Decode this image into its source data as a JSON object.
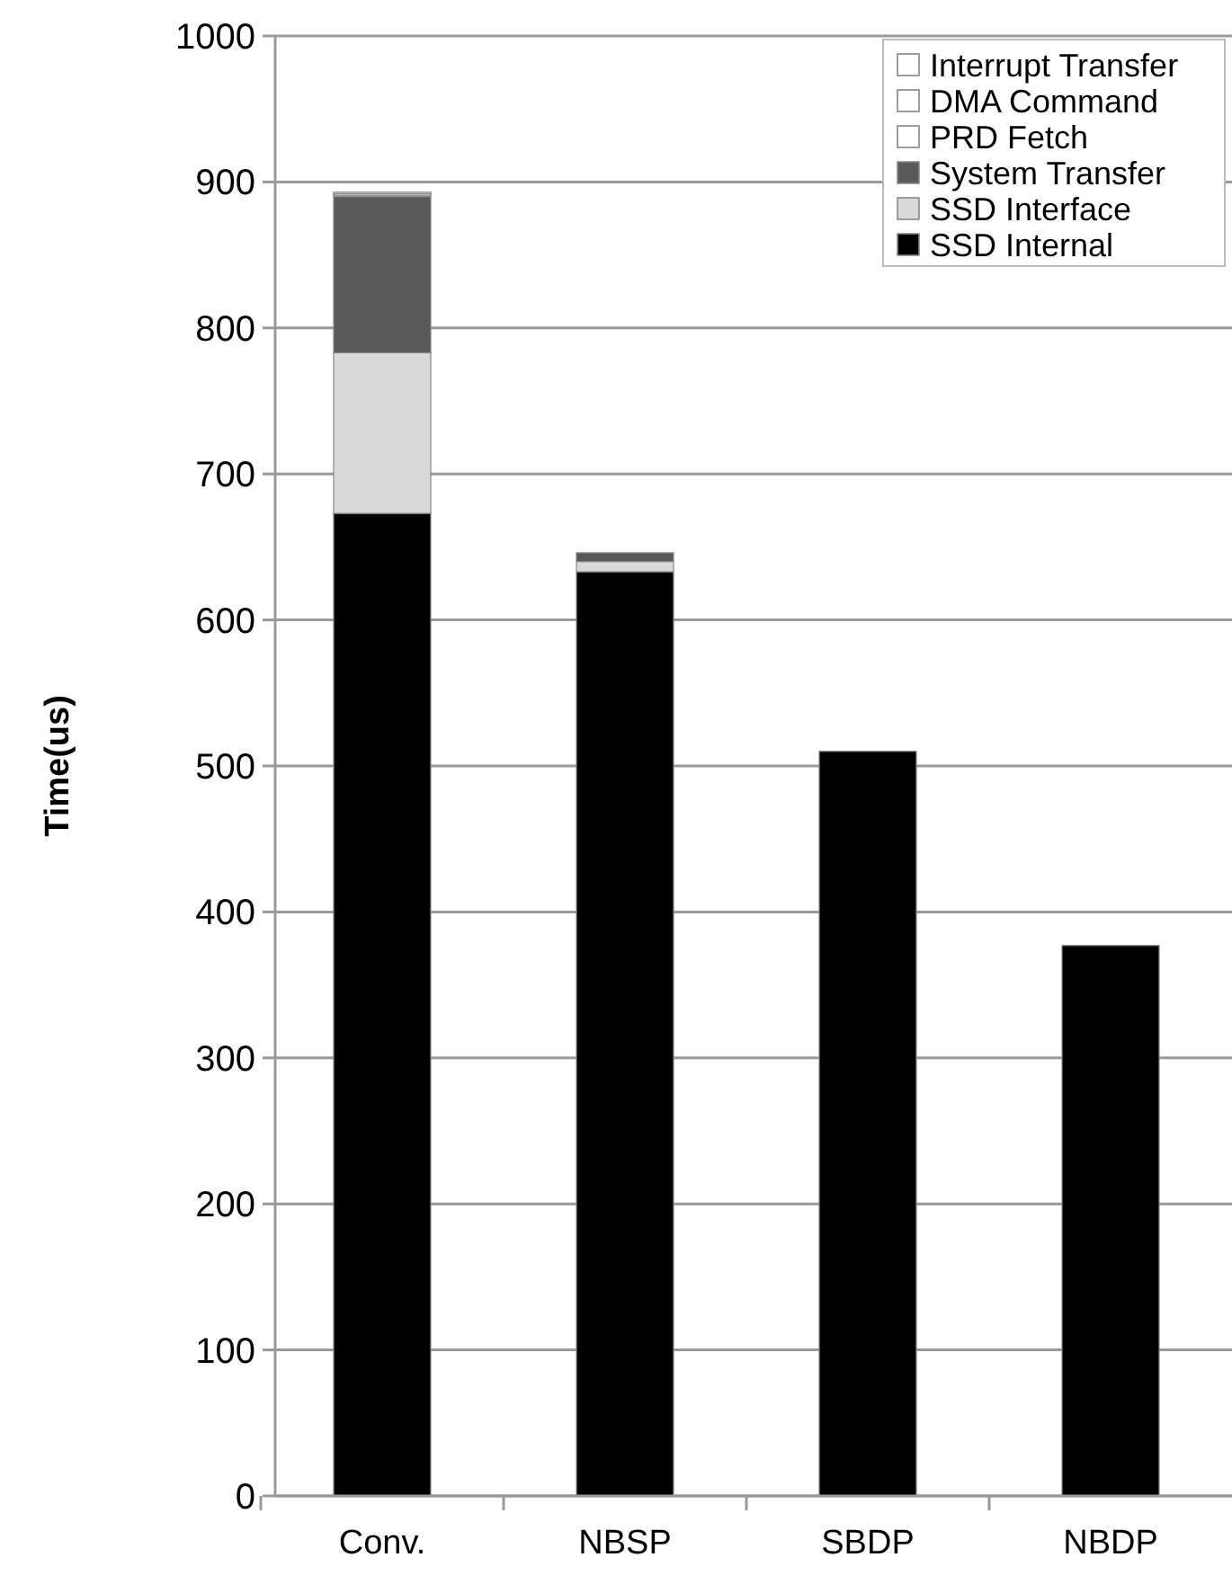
{
  "chart_data": {
    "type": "bar",
    "stacked": true,
    "ylabel": "Time(us)",
    "categories": [
      "Conv.",
      "NBSP",
      "SBDP",
      "NBDP"
    ],
    "series": [
      {
        "name": "SSD Internal",
        "color": "#000000",
        "values": [
          673,
          633,
          510,
          377
        ]
      },
      {
        "name": "SSD Interface",
        "color": "#d9d9d9",
        "values": [
          110,
          7,
          0,
          0
        ]
      },
      {
        "name": "System Transfer",
        "color": "#595959",
        "values": [
          107,
          6,
          0,
          0
        ]
      },
      {
        "name": "PRD Fetch",
        "color": "#ffffff",
        "values": [
          1,
          0,
          0,
          0
        ]
      },
      {
        "name": "DMA Command",
        "color": "#ffffff",
        "values": [
          1,
          0,
          0,
          0
        ]
      },
      {
        "name": "Interrupt Transfer",
        "color": "#ffffff",
        "values": [
          1,
          0,
          0,
          0
        ]
      }
    ],
    "ylim": [
      0,
      1000
    ],
    "yticks": [
      0,
      100,
      200,
      300,
      400,
      500,
      600,
      700,
      800,
      900,
      1000
    ],
    "grid": "y",
    "legend": "top right"
  }
}
